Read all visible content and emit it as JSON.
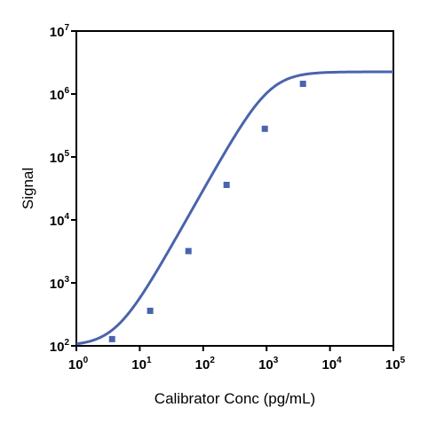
{
  "chart_data": {
    "type": "scatter",
    "title": "",
    "xlabel": "Calibrator Conc (pg/mL)",
    "ylabel": "Signal",
    "xscale": "log",
    "yscale": "log",
    "xlim": [
      1,
      100000
    ],
    "ylim": [
      100,
      10000000
    ],
    "grid": false,
    "legend": "none",
    "color": "#4a63ad",
    "x_ticks": [
      {
        "base": "10",
        "exp": "0"
      },
      {
        "base": "10",
        "exp": "1"
      },
      {
        "base": "10",
        "exp": "2"
      },
      {
        "base": "10",
        "exp": "3"
      },
      {
        "base": "10",
        "exp": "4"
      },
      {
        "base": "10",
        "exp": "5"
      }
    ],
    "y_ticks": [
      {
        "base": "10",
        "exp": "2"
      },
      {
        "base": "10",
        "exp": "3"
      },
      {
        "base": "10",
        "exp": "4"
      },
      {
        "base": "10",
        "exp": "5"
      },
      {
        "base": "10",
        "exp": "6"
      },
      {
        "base": "10",
        "exp": "7"
      }
    ],
    "series": [
      {
        "values": [
          {
            "x": 3.66,
            "y": 128
          },
          {
            "x": 14.6,
            "y": 360
          },
          {
            "x": 58.6,
            "y": 3200
          },
          {
            "x": 234,
            "y": 36000
          },
          {
            "x": 938,
            "y": 280000
          },
          {
            "x": 3750,
            "y": 1450000
          }
        ],
        "fit": {
          "model": "4PL",
          "bottom": 100,
          "top": 2250000,
          "ec50": 1100,
          "hill": 1.8
        }
      }
    ]
  }
}
